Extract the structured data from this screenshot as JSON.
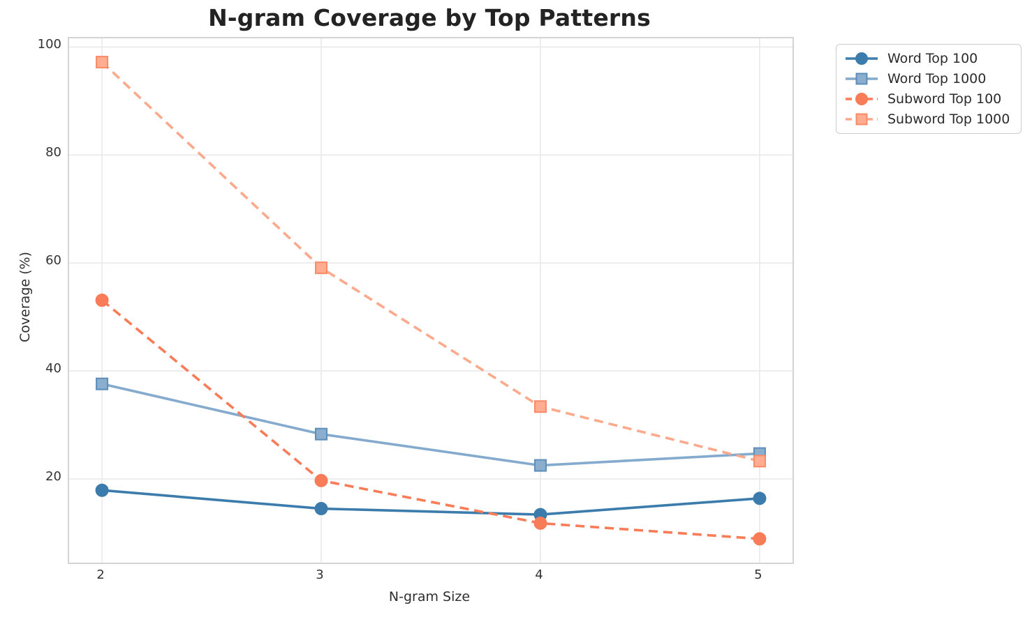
{
  "chart_data": {
    "type": "line",
    "title": "N-gram Coverage by Top Patterns",
    "xlabel": "N-gram Size",
    "ylabel": "Coverage (%)",
    "x": [
      2,
      3,
      4,
      5
    ],
    "x_tick_labels": [
      "2",
      "3",
      "4",
      "5"
    ],
    "y_ticks": [
      20,
      40,
      60,
      80,
      100
    ],
    "xlim": [
      1.85,
      5.15
    ],
    "ylim": [
      4.5,
      101.6
    ],
    "grid": true,
    "grid_color": "#e9e9e9",
    "spine_color": "#d4d4d4",
    "legend_position": "outside-top-right",
    "series": [
      {
        "name": "Word Top 100",
        "values": [
          17.9,
          14.5,
          13.4,
          16.4
        ],
        "color": "#3c7cac",
        "marker_fill": "#3c7cac",
        "marker_edge": "#3c7cac",
        "line_style": "solid",
        "marker": "circle"
      },
      {
        "name": "Word Top 1000",
        "values": [
          37.6,
          28.3,
          22.5,
          24.7
        ],
        "color": "#84aacd",
        "marker_fill": "#8badce",
        "marker_edge": "#5d8db9",
        "line_style": "solid",
        "marker": "square"
      },
      {
        "name": "Subword Top 100",
        "values": [
          53.1,
          19.7,
          11.8,
          8.9
        ],
        "color": "#f87c57",
        "marker_fill": "#f87c57",
        "marker_edge": "#f87c57",
        "line_style": "dashed",
        "marker": "circle"
      },
      {
        "name": "Subword Top 1000",
        "values": [
          97.2,
          59.1,
          33.4,
          23.3
        ],
        "color": "#fda98c",
        "marker_fill": "#ffac90",
        "marker_edge": "#f98a68",
        "line_style": "dashed",
        "marker": "square"
      }
    ]
  }
}
